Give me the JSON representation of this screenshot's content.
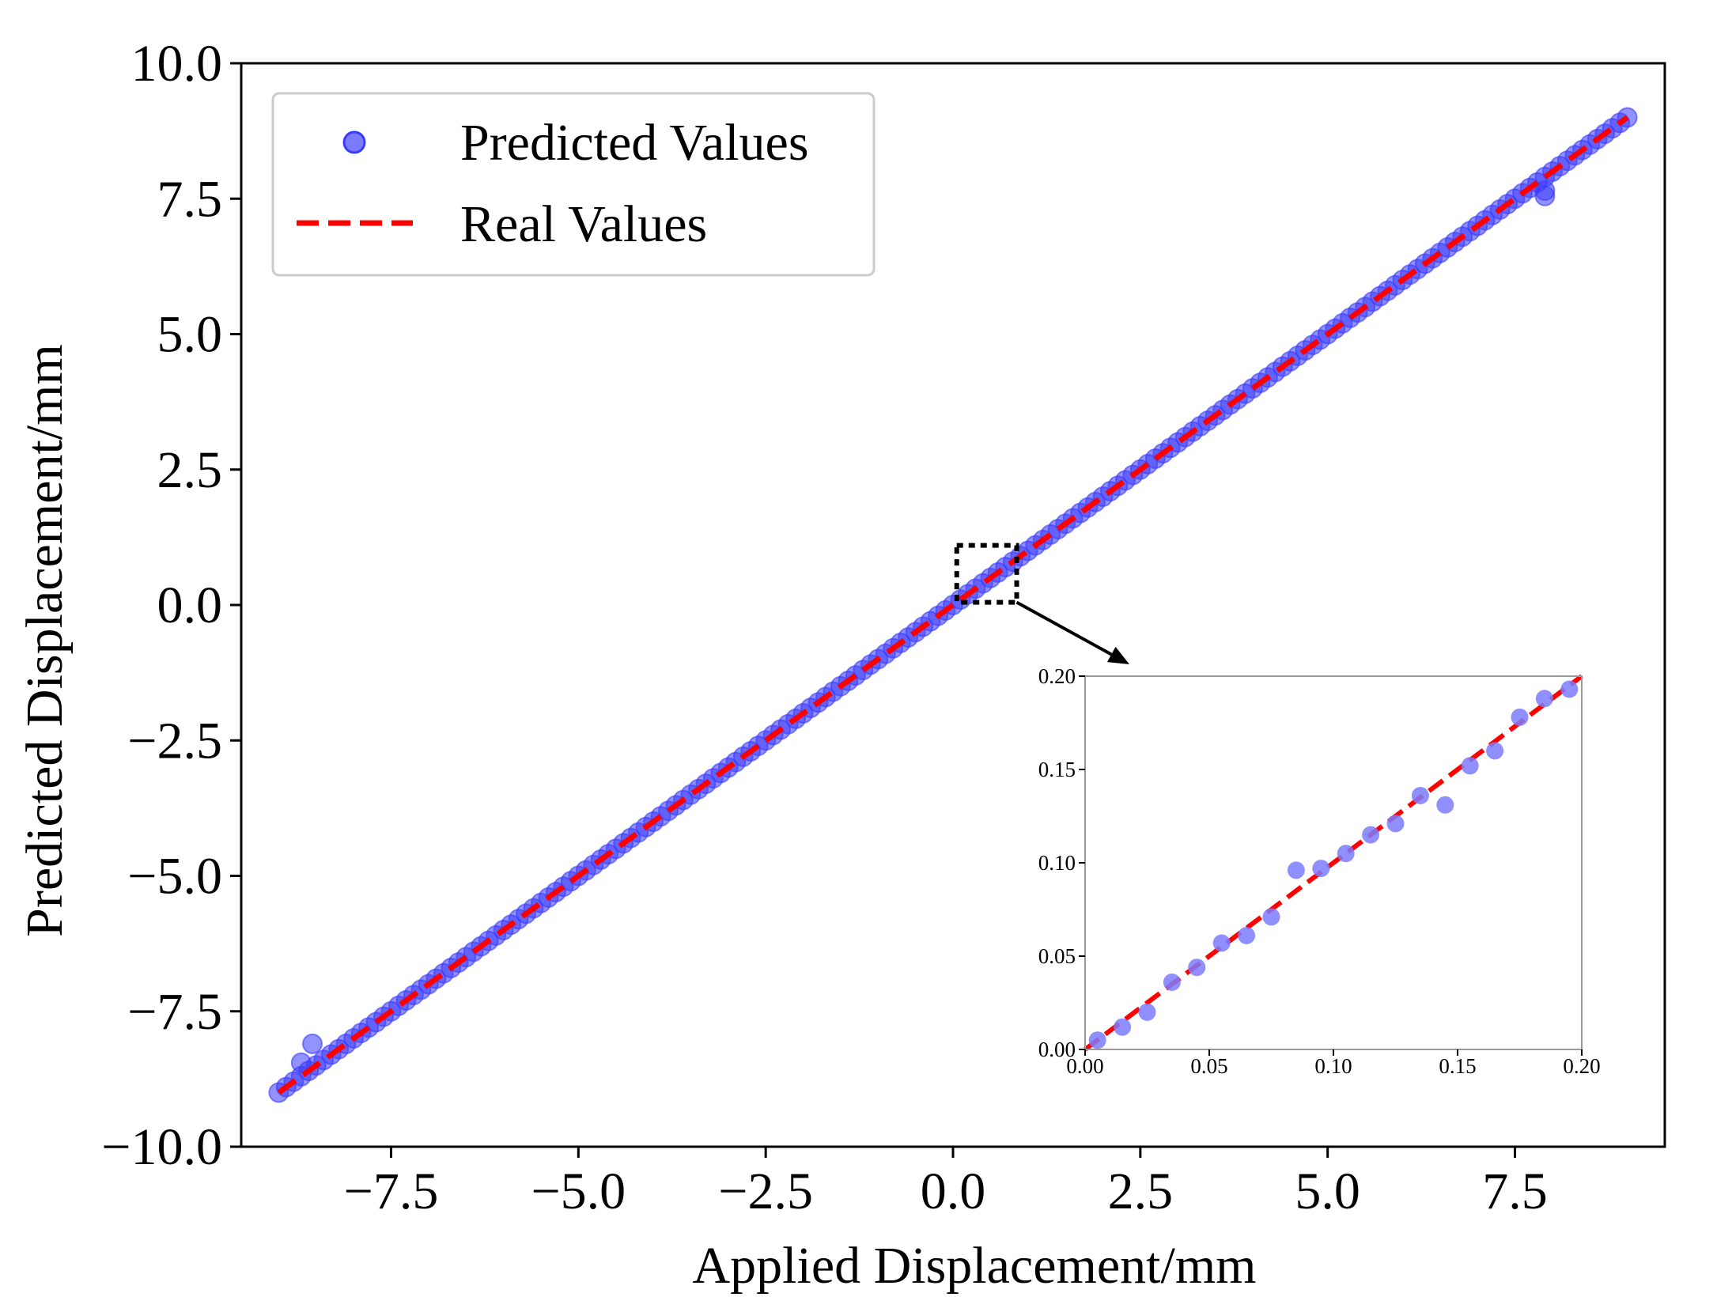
{
  "chart_data": [
    {
      "id": "main",
      "type": "scatter",
      "title": "",
      "xlabel": "Applied Displacement/mm",
      "ylabel": "Predicted Displacement/mm",
      "xlim": [
        -9.5,
        9.5
      ],
      "ylim": [
        -10.0,
        10.0
      ],
      "x_ticks": [
        -7.5,
        -5.0,
        -2.5,
        0.0,
        2.5,
        5.0,
        7.5
      ],
      "x_tick_labels": [
        "−7.5",
        "−5.0",
        "−2.5",
        "0.0",
        "2.5",
        "5.0",
        "7.5"
      ],
      "y_ticks": [
        10.0,
        7.5,
        5.0,
        2.5,
        0.0,
        -2.5,
        -5.0,
        -7.5,
        -10.0
      ],
      "y_tick_labels": [
        "10.0",
        "7.5",
        "5.0",
        "2.5",
        "0.0",
        "−2.5",
        "−5.0",
        "−7.5",
        "−10.0"
      ],
      "grid": false,
      "legend_position": "top-left",
      "series": [
        {
          "name": "Predicted Values",
          "kind": "scatter",
          "color": "#3b3bff",
          "trend": {
            "x_start": -9.0,
            "x_end": 9.0,
            "step": 0.1,
            "slope": 1.0,
            "intercept": 0.0
          },
          "outliers": [
            {
              "x": -8.55,
              "y": -8.1
            },
            {
              "x": -8.7,
              "y": -8.45
            },
            {
              "x": 7.9,
              "y": 7.55
            },
            {
              "x": 7.9,
              "y": 7.65
            }
          ]
        },
        {
          "name": "Real Values",
          "kind": "dashed-line",
          "color": "#ff0000",
          "x": [
            -9.0,
            9.0
          ],
          "y": [
            -9.0,
            9.0
          ]
        }
      ],
      "annotations": [
        {
          "type": "zoom-box",
          "x_range": [
            0.05,
            0.85
          ],
          "y_range": [
            0.05,
            1.1
          ],
          "target": "inset"
        }
      ]
    },
    {
      "id": "inset",
      "type": "scatter",
      "title": "",
      "xlabel": "",
      "ylabel": "",
      "xlim": [
        0.0,
        0.2
      ],
      "ylim": [
        0.0,
        0.2
      ],
      "x_ticks": [
        0.0,
        0.05,
        0.1,
        0.15,
        0.2
      ],
      "x_tick_labels": [
        "0.00",
        "0.05",
        "0.10",
        "0.15",
        "0.20"
      ],
      "y_ticks": [
        0.2,
        0.15,
        0.1,
        0.05,
        0.0
      ],
      "y_tick_labels": [
        "0.20",
        "0.15",
        "0.10",
        "0.05",
        "0.00"
      ],
      "grid": false,
      "series": [
        {
          "name": "Predicted Values",
          "kind": "scatter",
          "color": "#7b7bff",
          "x": [
            0.005,
            0.015,
            0.025,
            0.035,
            0.045,
            0.055,
            0.065,
            0.075,
            0.085,
            0.095,
            0.105,
            0.115,
            0.125,
            0.135,
            0.145,
            0.155,
            0.165,
            0.175,
            0.185,
            0.195
          ],
          "y": [
            0.005,
            0.012,
            0.02,
            0.036,
            0.044,
            0.057,
            0.061,
            0.071,
            0.096,
            0.097,
            0.105,
            0.115,
            0.121,
            0.136,
            0.131,
            0.152,
            0.16,
            0.178,
            0.188,
            0.193
          ]
        },
        {
          "name": "Real Values",
          "kind": "dashed-line",
          "color": "#ff0000",
          "x": [
            0.0,
            0.2
          ],
          "y": [
            0.0,
            0.2
          ]
        }
      ]
    }
  ],
  "legend": {
    "items": [
      {
        "label": "Predicted Values",
        "marker": "circle",
        "color": "#3b3bff"
      },
      {
        "label": "Real Values",
        "marker": "dashed-line",
        "color": "#ff0000"
      }
    ]
  }
}
